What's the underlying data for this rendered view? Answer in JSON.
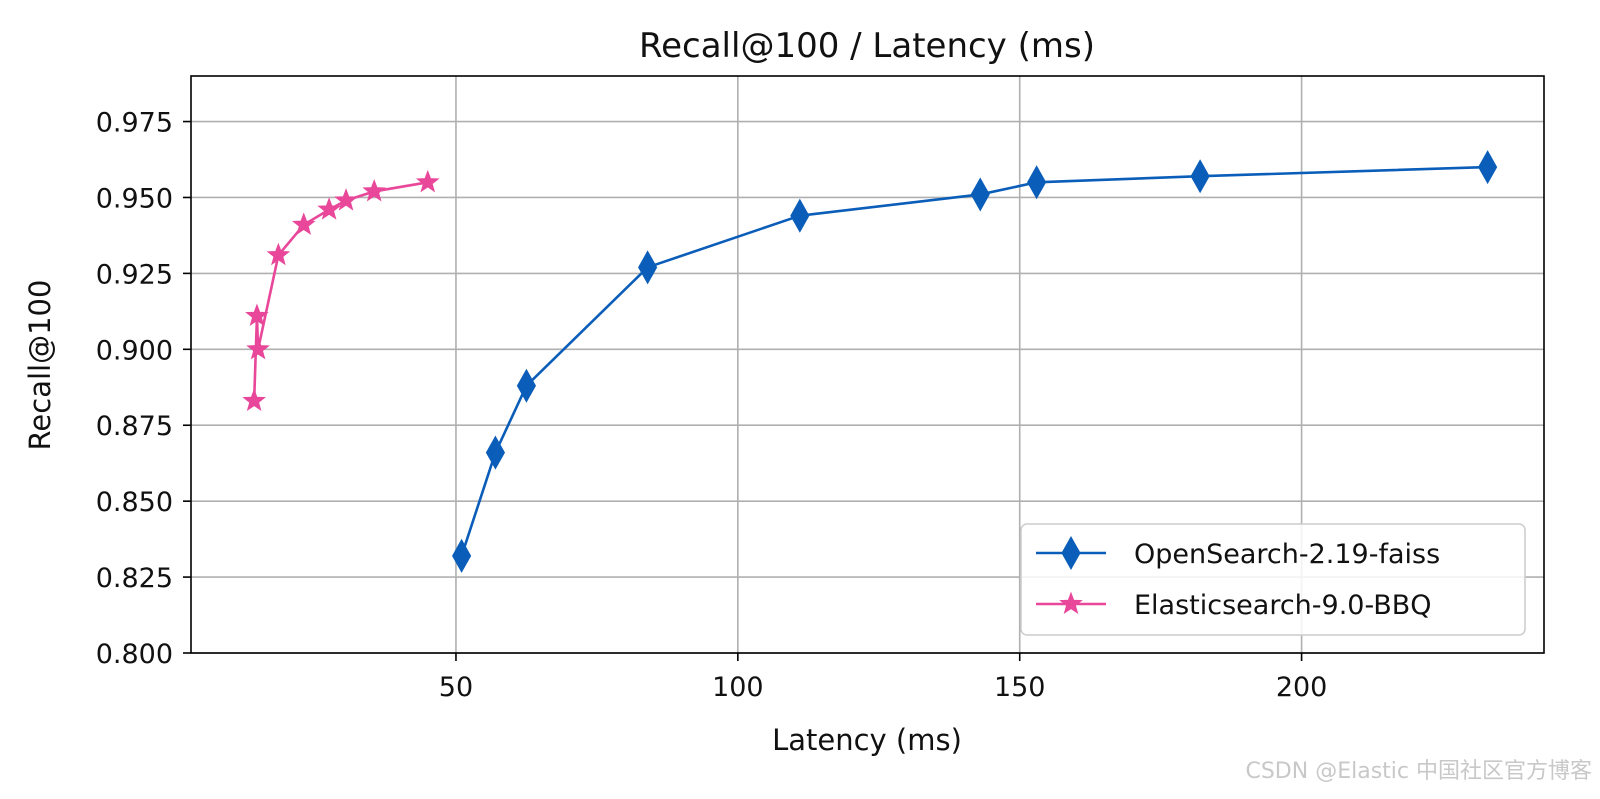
{
  "watermark": "CSDN @Elastic 中国社区官方博客",
  "chart_data": {
    "type": "line",
    "title": "Recall@100 / Latency (ms)",
    "xlabel": "Latency (ms)",
    "ylabel": "Recall@100",
    "xlim": [
      3,
      243
    ],
    "ylim": [
      0.8,
      0.99
    ],
    "xticks": [
      50,
      100,
      150,
      200
    ],
    "yticks": [
      0.8,
      0.825,
      0.85,
      0.875,
      0.9,
      0.925,
      0.95,
      0.975
    ],
    "xtick_labels": [
      "50",
      "100",
      "150",
      "200"
    ],
    "ytick_labels": [
      "0.800",
      "0.825",
      "0.850",
      "0.875",
      "0.900",
      "0.925",
      "0.950",
      "0.975"
    ],
    "grid": true,
    "legend_position": "lower-right",
    "series": [
      {
        "name": "OpenSearch-2.19-faiss",
        "color": "#0a5db8",
        "marker": "diamond",
        "x": [
          51,
          57,
          62.5,
          84,
          111,
          143,
          153,
          182,
          233
        ],
        "y": [
          0.832,
          0.866,
          0.888,
          0.927,
          0.944,
          0.951,
          0.955,
          0.957,
          0.96
        ]
      },
      {
        "name": "Elasticsearch-9.0-BBQ",
        "color": "#e8479a",
        "marker": "star",
        "x": [
          14.2,
          14.7,
          14.9,
          18.5,
          23,
          27.5,
          30.5,
          35.5,
          45
        ],
        "y": [
          0.883,
          0.911,
          0.9,
          0.931,
          0.941,
          0.946,
          0.949,
          0.952,
          0.955
        ]
      }
    ]
  }
}
